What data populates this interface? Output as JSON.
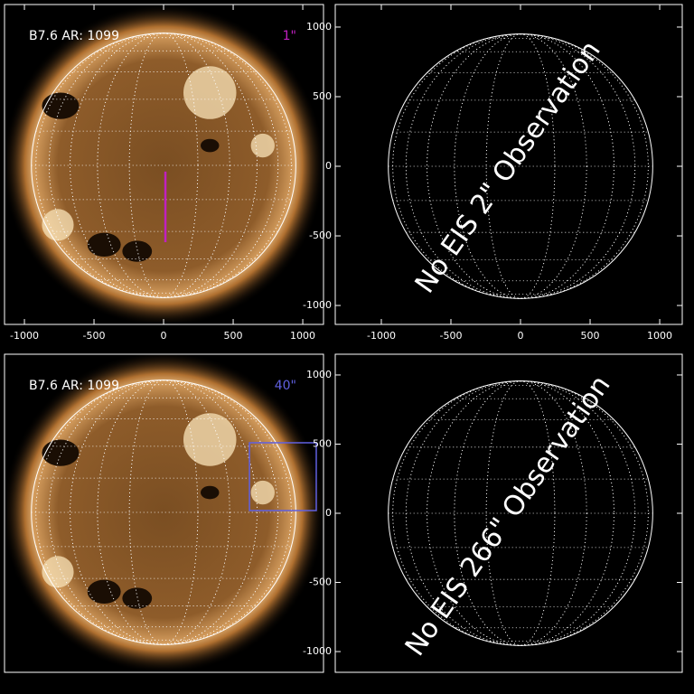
{
  "chart_data": [
    {
      "type": "solar-image",
      "label": "B7.6 AR: 1099",
      "scale_label": "1\"",
      "scale_color": "#c020c0",
      "xlim": [
        -1143,
        1149
      ],
      "ylim": [
        -1143,
        1156
      ],
      "xticks": [
        -1000,
        -500,
        0,
        500,
        1000
      ],
      "solar_radius": 950,
      "slit": {
        "x": 13,
        "y": [
          -45,
          -552
        ]
      }
    },
    {
      "type": "solar-grid",
      "annotation": "No EIS 2\" Observation",
      "xlim": [
        -1331,
        1162
      ],
      "ylim": [
        -1136,
        1162
      ],
      "xticks": [
        -1000,
        -500,
        0,
        500,
        1000
      ],
      "yticks": [
        -1000,
        -500,
        0,
        500,
        1000
      ],
      "solar_radius": 950
    },
    {
      "type": "solar-image",
      "label": "B7.6 AR: 1099",
      "scale_label": "40\"",
      "scale_color": "#6060e0",
      "xlim": [
        -1143,
        1149
      ],
      "ylim": [
        -1149,
        1136
      ],
      "solar_radius": 950,
      "box": {
        "x": [
          617,
          1097
        ],
        "y": [
          13,
          500
        ]
      }
    },
    {
      "type": "solar-grid",
      "annotation": "No EIS 266\" Observation",
      "xlim": [
        -1331,
        1162
      ],
      "ylim": [
        -1150,
        1150
      ],
      "yticks": [
        -1000,
        -500,
        0,
        500,
        1000
      ],
      "solar_radius": 950
    }
  ]
}
